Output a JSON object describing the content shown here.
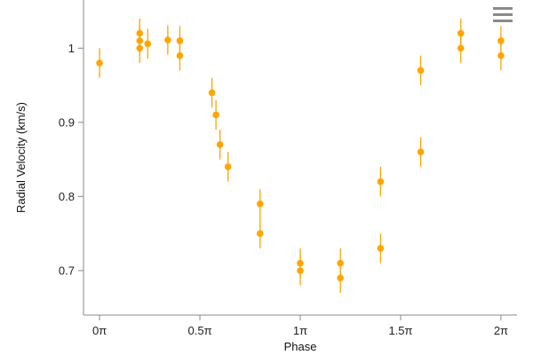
{
  "chart_data": {
    "type": "scatter",
    "xlabel": "Phase",
    "ylabel": "Radial Velocity (km/s)",
    "xlim": [
      -0.08,
      2.08
    ],
    "ylim": [
      0.64,
      1.065
    ],
    "x_ticks": [
      0,
      0.5,
      1,
      1.5,
      2
    ],
    "x_tick_labels": [
      "0π",
      "0.5π",
      "1π",
      "1.5π",
      "2π"
    ],
    "y_ticks": [
      0.7,
      0.8,
      0.9,
      1
    ],
    "y_tick_labels": [
      "0.7",
      "0.8",
      "0.9",
      "1"
    ],
    "grid": false,
    "marker_color": "#FFA500",
    "points": [
      {
        "x": 0.0,
        "y": 0.98,
        "err": 0.02
      },
      {
        "x": 0.2,
        "y": 1.02,
        "err": 0.02
      },
      {
        "x": 0.2,
        "y": 1.01,
        "err": 0.02
      },
      {
        "x": 0.2,
        "y": 1.0,
        "err": 0.02
      },
      {
        "x": 0.24,
        "y": 1.006,
        "err": 0.02
      },
      {
        "x": 0.34,
        "y": 1.011,
        "err": 0.02
      },
      {
        "x": 0.4,
        "y": 1.01,
        "err": 0.02
      },
      {
        "x": 0.4,
        "y": 0.99,
        "err": 0.02
      },
      {
        "x": 0.56,
        "y": 0.94,
        "err": 0.02
      },
      {
        "x": 0.58,
        "y": 0.91,
        "err": 0.02
      },
      {
        "x": 0.6,
        "y": 0.87,
        "err": 0.02
      },
      {
        "x": 0.64,
        "y": 0.84,
        "err": 0.02
      },
      {
        "x": 0.8,
        "y": 0.79,
        "err": 0.02
      },
      {
        "x": 0.8,
        "y": 0.75,
        "err": 0.02
      },
      {
        "x": 1.0,
        "y": 0.71,
        "err": 0.02
      },
      {
        "x": 1.0,
        "y": 0.7,
        "err": 0.02
      },
      {
        "x": 1.2,
        "y": 0.71,
        "err": 0.02
      },
      {
        "x": 1.2,
        "y": 0.69,
        "err": 0.02
      },
      {
        "x": 1.4,
        "y": 0.82,
        "err": 0.02
      },
      {
        "x": 1.4,
        "y": 0.73,
        "err": 0.02
      },
      {
        "x": 1.6,
        "y": 0.97,
        "err": 0.02
      },
      {
        "x": 1.6,
        "y": 0.86,
        "err": 0.02
      },
      {
        "x": 1.8,
        "y": 1.02,
        "err": 0.02
      },
      {
        "x": 1.8,
        "y": 1.0,
        "err": 0.02
      },
      {
        "x": 2.0,
        "y": 1.01,
        "err": 0.02
      },
      {
        "x": 2.0,
        "y": 0.99,
        "err": 0.02
      }
    ]
  },
  "toolbar": {
    "menu_icon": "hamburger-menu-icon"
  }
}
